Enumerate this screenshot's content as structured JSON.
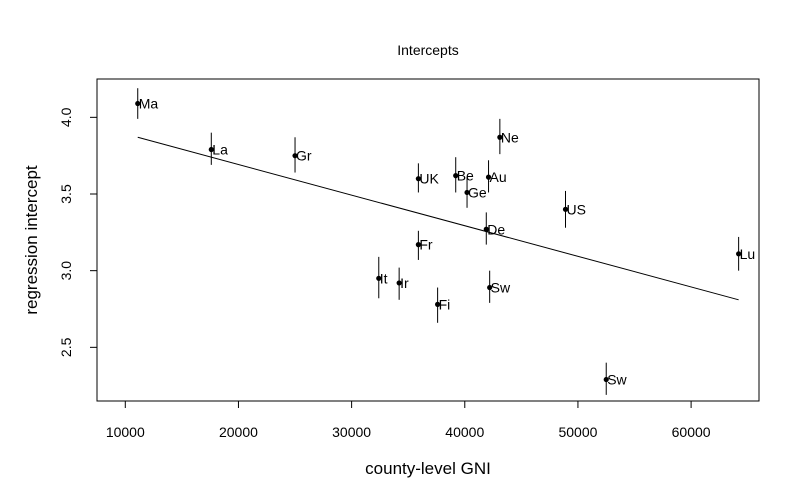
{
  "chart_data": {
    "type": "scatter",
    "title": "Intercepts",
    "xlabel": "county-level GNI",
    "ylabel": "regression intercept",
    "xlim": [
      7500,
      66000
    ],
    "ylim": [
      2.15,
      4.25
    ],
    "x_ticks": [
      10000,
      20000,
      30000,
      40000,
      50000,
      60000
    ],
    "y_ticks": [
      2.5,
      3.0,
      3.5,
      4.0
    ],
    "x_tick_labels": [
      "10000",
      "20000",
      "30000",
      "40000",
      "50000",
      "60000"
    ],
    "y_tick_labels": [
      "2.5",
      "3.0",
      "3.5",
      "4.0"
    ],
    "grid": false,
    "points": [
      {
        "label": "Ma",
        "x": 11100,
        "y": 4.09,
        "lo": 3.99,
        "hi": 4.19
      },
      {
        "label": "La",
        "x": 17600,
        "y": 3.79,
        "lo": 3.69,
        "hi": 3.9
      },
      {
        "label": "Gr",
        "x": 25000,
        "y": 3.75,
        "lo": 3.64,
        "hi": 3.87
      },
      {
        "label": "UK",
        "x": 35900,
        "y": 3.6,
        "lo": 3.51,
        "hi": 3.7
      },
      {
        "label": "Be",
        "x": 39200,
        "y": 3.62,
        "lo": 3.51,
        "hi": 3.74
      },
      {
        "label": "Ne",
        "x": 43100,
        "y": 3.87,
        "lo": 3.76,
        "hi": 3.99
      },
      {
        "label": "Au",
        "x": 42100,
        "y": 3.61,
        "lo": 3.51,
        "hi": 3.72
      },
      {
        "label": "Ge",
        "x": 40200,
        "y": 3.51,
        "lo": 3.41,
        "hi": 3.61
      },
      {
        "label": "US",
        "x": 48900,
        "y": 3.4,
        "lo": 3.28,
        "hi": 3.52
      },
      {
        "label": "De",
        "x": 41900,
        "y": 3.27,
        "lo": 3.17,
        "hi": 3.38
      },
      {
        "label": "Fr",
        "x": 35900,
        "y": 3.17,
        "lo": 3.07,
        "hi": 3.26
      },
      {
        "label": "Lu",
        "x": 64200,
        "y": 3.11,
        "lo": 3.0,
        "hi": 3.22
      },
      {
        "label": "It",
        "x": 32400,
        "y": 2.95,
        "lo": 2.82,
        "hi": 3.09
      },
      {
        "label": "Ir",
        "x": 34200,
        "y": 2.92,
        "lo": 2.81,
        "hi": 3.02
      },
      {
        "label": "Sw",
        "x": 42200,
        "y": 2.89,
        "lo": 2.79,
        "hi": 3.0
      },
      {
        "label": "Fi",
        "x": 37600,
        "y": 2.78,
        "lo": 2.66,
        "hi": 2.89
      },
      {
        "label": "Sw",
        "x": 52500,
        "y": 2.29,
        "lo": 2.19,
        "hi": 2.4
      }
    ],
    "regression_line": {
      "x": [
        11100,
        64200
      ],
      "y": [
        3.87,
        2.81
      ]
    }
  }
}
